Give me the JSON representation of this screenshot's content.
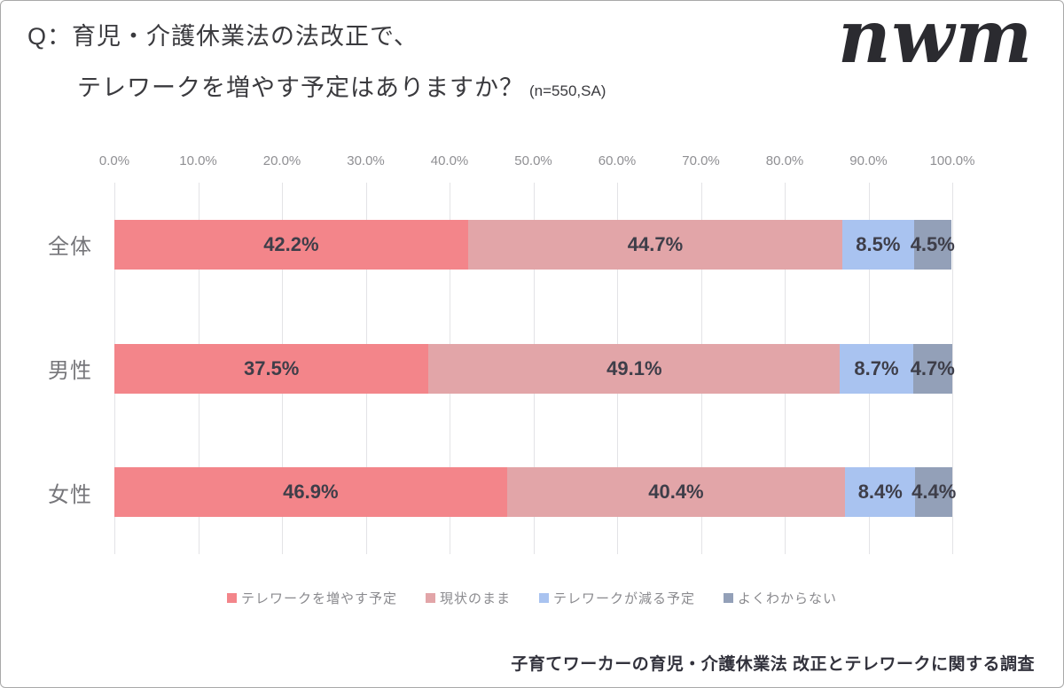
{
  "header": {
    "title_line1": "Q：育児・介護休業法の法改正で、",
    "title_line2": "テレワークを増やす予定はありますか？",
    "sample_note": "(n=550,SA)",
    "logo": "nwm"
  },
  "chart_data": {
    "type": "bar",
    "orientation": "horizontal",
    "stacked": true,
    "unit": "%",
    "title": "育児・介護休業法の法改正で、テレワークを増やす予定はありますか？",
    "sample": "n=550, SA",
    "categories": [
      "全体",
      "男性",
      "女性"
    ],
    "series": [
      {
        "name": "テレワークを増やす予定",
        "color": "#F3858A",
        "values": [
          42.2,
          37.5,
          46.9
        ]
      },
      {
        "name": "現状のまま",
        "color": "#E2A5A8",
        "values": [
          44.7,
          49.1,
          40.4
        ]
      },
      {
        "name": "テレワークが減る予定",
        "color": "#A9C3F0",
        "values": [
          8.5,
          8.7,
          8.4
        ]
      },
      {
        "name": "よくわからない",
        "color": "#93A0B8",
        "values": [
          4.5,
          4.7,
          4.4
        ]
      }
    ],
    "x_ticks": [
      "0.0%",
      "10.0%",
      "20.0%",
      "30.0%",
      "40.0%",
      "50.0%",
      "60.0%",
      "70.0%",
      "80.0%",
      "90.0%",
      "100.0%"
    ],
    "xlim": [
      0,
      100
    ],
    "grid": true,
    "legend_position": "bottom",
    "value_label_format": "{value}%",
    "colors": {
      "gridline": "#e3e3e6",
      "tick_text": "#8f8f93",
      "category_text": "#76767a",
      "value_text": "#3e3e49"
    }
  },
  "footer": {
    "source": "子育てワーカーの育児・介護休業法 改正とテレワークに関する調査"
  }
}
